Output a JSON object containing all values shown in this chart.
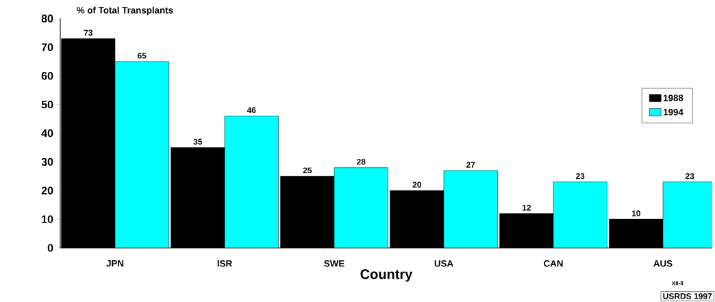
{
  "chart_data": {
    "type": "bar",
    "ylabel": "% of Total Transplants",
    "xlabel": "Country",
    "categories": [
      "JPN",
      "ISR",
      "SWE",
      "USA",
      "CAN",
      "AUS"
    ],
    "series": [
      {
        "name": "1988",
        "color": "#000000",
        "values": [
          73,
          35,
          25,
          20,
          12,
          10
        ]
      },
      {
        "name": "1994",
        "color": "#00ffff",
        "values": [
          65,
          46,
          28,
          27,
          23,
          23
        ]
      }
    ],
    "ylim": [
      0,
      80
    ],
    "yticks": [
      0,
      10,
      20,
      30,
      40,
      50,
      60,
      70,
      80
    ],
    "grid": false,
    "legend": "right",
    "data_labels": true,
    "annotations": [
      "XII-8",
      "USRDS 1997"
    ]
  }
}
